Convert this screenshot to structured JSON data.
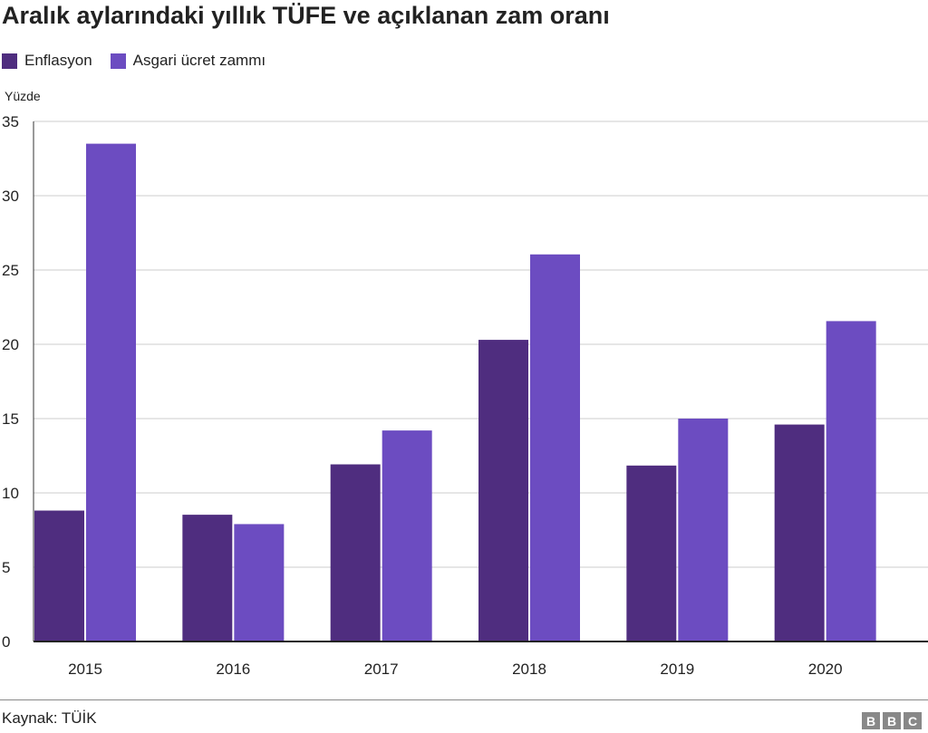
{
  "chart_data": {
    "type": "bar",
    "title": "Aralık aylarındaki yıllık TÜFE ve açıklanan zam oranı",
    "ylabel": "Yüzde",
    "categories": [
      "2015",
      "2016",
      "2017",
      "2018",
      "2019",
      "2020"
    ],
    "series": [
      {
        "name": "Enflasyon",
        "color": "#4f2d7f",
        "values": [
          8.81,
          8.53,
          11.92,
          20.3,
          11.84,
          14.6
        ]
      },
      {
        "name": "Asgari ücret zammı",
        "color": "#6c4cc1",
        "values": [
          33.5,
          7.9,
          14.2,
          26.05,
          15.0,
          21.56
        ]
      }
    ],
    "ylim": [
      0,
      35
    ],
    "yticks": [
      "0",
      "5",
      "10",
      "15",
      "20",
      "25",
      "30",
      "35"
    ],
    "grid": true,
    "legend": "top-left"
  },
  "source": "Kaynak: TÜİK",
  "logo": [
    "B",
    "B",
    "C"
  ]
}
